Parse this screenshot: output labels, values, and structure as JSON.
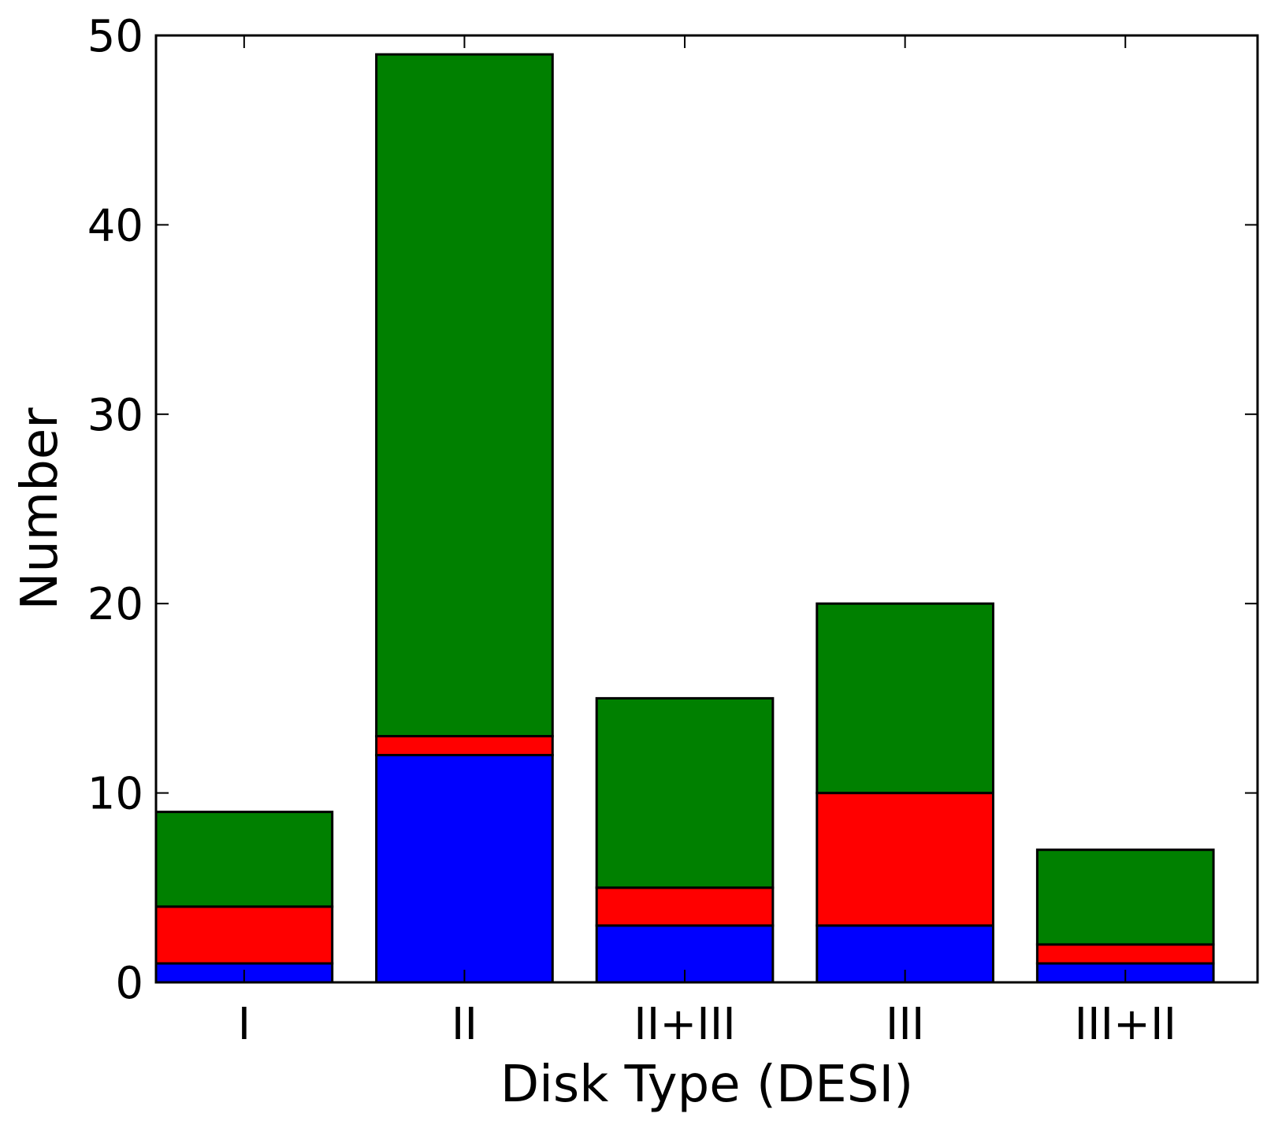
{
  "chart_data": {
    "type": "bar",
    "stacked": true,
    "categories": [
      "I",
      "II",
      "II+III",
      "III",
      "III+II"
    ],
    "series": [
      {
        "color": "#0000ff",
        "values": [
          1,
          12,
          3,
          3,
          1
        ]
      },
      {
        "color": "#ff0000",
        "values": [
          3,
          1,
          2,
          7,
          1
        ]
      },
      {
        "color": "#008000",
        "values": [
          5,
          36,
          10,
          10,
          5
        ]
      }
    ],
    "xlabel": "Disk Type (DESI)",
    "ylabel": "Number",
    "ylim": [
      0,
      50
    ],
    "yticks": [
      0,
      10,
      20,
      30,
      40,
      50
    ],
    "grid": false,
    "legend": false
  }
}
